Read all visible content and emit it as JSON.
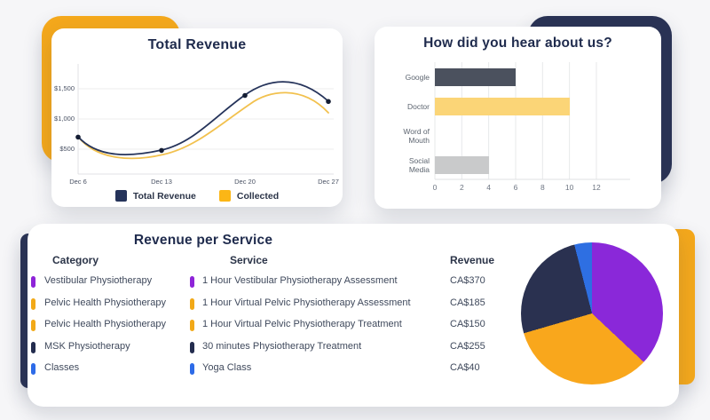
{
  "accent_colors": {
    "backdrop_gold": "#f4a81c",
    "backdrop_navy": "#2a3355",
    "title_navy": "#1f2b4d"
  },
  "chart_data": [
    {
      "id": "total-revenue-line",
      "type": "line",
      "title": "Total Revenue",
      "x": [
        "Dec 6",
        "Dec 13",
        "Dec 20",
        "Dec 27"
      ],
      "series": [
        {
          "name": "Total Revenue",
          "color": "#25335a",
          "swatch": "#25335a",
          "values": [
            700,
            480,
            1390,
            1290
          ],
          "point_markers": true
        },
        {
          "name": "Collected",
          "color": "#f2c14e",
          "swatch": "#fbb616",
          "values": [
            700,
            430,
            1250,
            1100
          ],
          "point_markers": false
        }
      ],
      "y_tick_labels": [
        "$1,500",
        "$1,000",
        "$500"
      ],
      "y_ticks": [
        1500,
        1000,
        500
      ],
      "ylim": [
        0,
        1900
      ],
      "grid": "horizontal",
      "curve": "smooth",
      "legend_position": "bottom",
      "point_color": "#141d33"
    },
    {
      "id": "hear-about-bar",
      "type": "bar",
      "orientation": "horizontal",
      "title": "How did you hear about us?",
      "categories": [
        "Google",
        "Doctor",
        "Word of Mouth",
        "Social Media"
      ],
      "values": [
        6,
        10,
        0,
        4
      ],
      "bar_colors": [
        "#4b515e",
        "#fbd577",
        "#c9cacb",
        "#c9cacb"
      ],
      "x_ticks": [
        0,
        2,
        4,
        6,
        8,
        10,
        12
      ],
      "xlim": [
        0,
        14
      ],
      "grid": "vertical",
      "legend_position": "none"
    },
    {
      "id": "revenue-pie",
      "type": "pie",
      "start_angle_deg": 0,
      "direction": "clockwise",
      "slices": [
        {
          "label": "1 Hour Vestibular Physiotherapy Assessment",
          "value": 370,
          "color": "#8a28d9"
        },
        {
          "label": "1 Hour Virtual Pelvic Physiotherapy Assessment",
          "value": 185,
          "color": "#f9a71c"
        },
        {
          "label": "1 Hour Virtual Pelvic Physiotherapy Treatment",
          "value": 150,
          "color": "#f9a71c"
        },
        {
          "label": "30 minutes Physiotherapy Treatment",
          "value": 255,
          "color": "#2a3150"
        },
        {
          "label": "Yoga Class",
          "value": 40,
          "color": "#2e6fe2"
        }
      ]
    },
    {
      "id": "revenue-table",
      "type": "table",
      "title": "Revenue per Service",
      "headers": [
        "Category",
        "Service",
        "Revenue"
      ],
      "rows": [
        {
          "category": "Vestibular Physiotherapy",
          "service": "1 Hour Vestibular Physiotherapy Assessment",
          "revenue": "CA$370",
          "color": "#8e24d8"
        },
        {
          "category": "Pelvic Health Physiotherapy",
          "service": "1 Hour Virtual Pelvic Physiotherapy Assessment",
          "revenue": "CA$185",
          "color": "#f2a918"
        },
        {
          "category": "Pelvic Health Physiotherapy",
          "service": "1 Hour Virtual Pelvic Physiotherapy Treatment",
          "revenue": "CA$150",
          "color": "#f2a918"
        },
        {
          "category": "MSK Physiotherapy",
          "service": "30 minutes Physiotherapy Treatment",
          "revenue": "CA$255",
          "color": "#232c4e"
        },
        {
          "category": "Classes",
          "service": "Yoga Class",
          "revenue": "CA$40",
          "color": "#2d6be8"
        }
      ]
    }
  ]
}
